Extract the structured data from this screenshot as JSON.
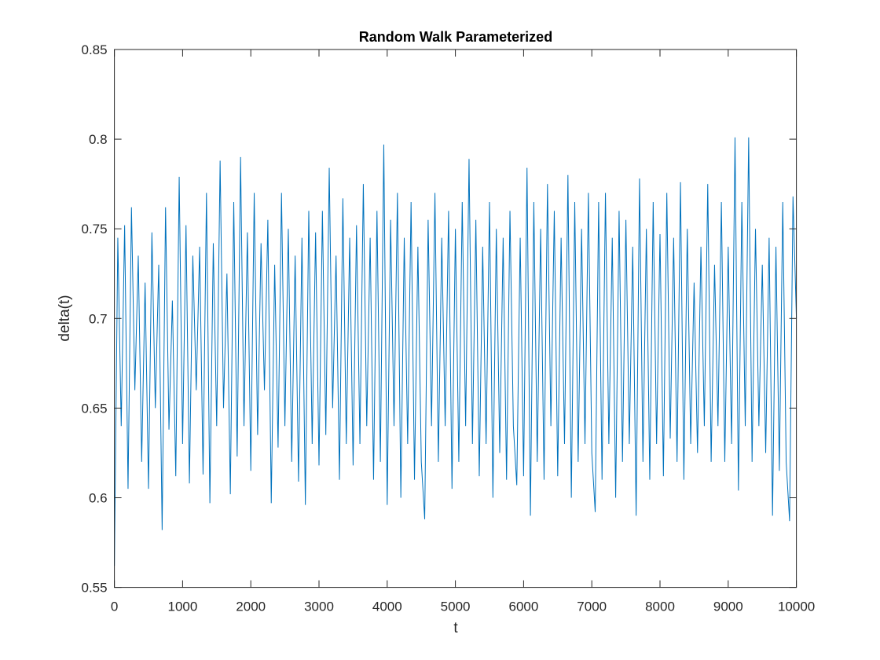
{
  "chart_data": {
    "type": "line",
    "title": "Random Walk Parameterized",
    "x_label": "t",
    "y_label": "delta(t)",
    "x": [
      0,
      50,
      100,
      150,
      200,
      250,
      300,
      350,
      400,
      450,
      500,
      550,
      600,
      650,
      700,
      750,
      800,
      850,
      900,
      950,
      1000,
      1050,
      1100,
      1150,
      1200,
      1250,
      1300,
      1350,
      1400,
      1450,
      1500,
      1550,
      1600,
      1650,
      1700,
      1750,
      1800,
      1850,
      1900,
      1950,
      2000,
      2050,
      2100,
      2150,
      2200,
      2250,
      2300,
      2350,
      2400,
      2450,
      2500,
      2550,
      2600,
      2650,
      2700,
      2750,
      2800,
      2850,
      2900,
      2950,
      3000,
      3050,
      3100,
      3150,
      3200,
      3250,
      3300,
      3350,
      3400,
      3450,
      3500,
      3550,
      3600,
      3650,
      3700,
      3750,
      3800,
      3850,
      3900,
      3950,
      4000,
      4050,
      4100,
      4150,
      4200,
      4250,
      4300,
      4350,
      4400,
      4450,
      4500,
      4550,
      4600,
      4650,
      4700,
      4750,
      4800,
      4850,
      4900,
      4950,
      5000,
      5050,
      5100,
      5150,
      5200,
      5250,
      5300,
      5350,
      5400,
      5450,
      5500,
      5550,
      5600,
      5650,
      5700,
      5750,
      5800,
      5850,
      5900,
      5950,
      6000,
      6050,
      6100,
      6150,
      6200,
      6250,
      6300,
      6350,
      6400,
      6450,
      6500,
      6550,
      6600,
      6650,
      6700,
      6750,
      6800,
      6850,
      6900,
      6950,
      7000,
      7050,
      7100,
      7150,
      7200,
      7250,
      7300,
      7350,
      7400,
      7450,
      7500,
      7550,
      7600,
      7650,
      7700,
      7750,
      7800,
      7850,
      7900,
      7950,
      8000,
      8050,
      8100,
      8150,
      8200,
      8250,
      8300,
      8350,
      8400,
      8450,
      8500,
      8550,
      8600,
      8650,
      8700,
      8750,
      8800,
      8850,
      8900,
      8950,
      9000,
      9050,
      9100,
      9150,
      9200,
      9250,
      9300,
      9350,
      9400,
      9450,
      9500,
      9550,
      9600,
      9650,
      9700,
      9750,
      9800,
      9850,
      9900,
      9950,
      10000
    ],
    "series": [
      {
        "color": "#0072bd",
        "values": [
          0.562,
          0.745,
          0.64,
          0.752,
          0.605,
          0.762,
          0.66,
          0.735,
          0.62,
          0.72,
          0.605,
          0.748,
          0.65,
          0.73,
          0.582,
          0.762,
          0.638,
          0.71,
          0.612,
          0.779,
          0.63,
          0.752,
          0.608,
          0.735,
          0.66,
          0.74,
          0.613,
          0.77,
          0.597,
          0.742,
          0.64,
          0.788,
          0.65,
          0.725,
          0.602,
          0.765,
          0.623,
          0.79,
          0.64,
          0.748,
          0.615,
          0.77,
          0.635,
          0.742,
          0.66,
          0.755,
          0.597,
          0.73,
          0.628,
          0.77,
          0.64,
          0.75,
          0.62,
          0.735,
          0.609,
          0.745,
          0.596,
          0.76,
          0.63,
          0.748,
          0.618,
          0.76,
          0.635,
          0.784,
          0.65,
          0.735,
          0.61,
          0.767,
          0.63,
          0.745,
          0.618,
          0.752,
          0.63,
          0.775,
          0.64,
          0.745,
          0.61,
          0.76,
          0.62,
          0.797,
          0.596,
          0.755,
          0.64,
          0.77,
          0.6,
          0.745,
          0.63,
          0.765,
          0.61,
          0.74,
          0.62,
          0.588,
          0.755,
          0.64,
          0.77,
          0.62,
          0.745,
          0.64,
          0.76,
          0.605,
          0.75,
          0.62,
          0.765,
          0.64,
          0.789,
          0.63,
          0.755,
          0.612,
          0.74,
          0.63,
          0.765,
          0.6,
          0.75,
          0.625,
          0.745,
          0.61,
          0.76,
          0.64,
          0.607,
          0.745,
          0.612,
          0.784,
          0.59,
          0.765,
          0.62,
          0.75,
          0.61,
          0.775,
          0.64,
          0.76,
          0.612,
          0.745,
          0.63,
          0.78,
          0.6,
          0.765,
          0.62,
          0.75,
          0.63,
          0.77,
          0.625,
          0.592,
          0.765,
          0.61,
          0.77,
          0.63,
          0.745,
          0.6,
          0.76,
          0.62,
          0.755,
          0.63,
          0.74,
          0.59,
          0.778,
          0.62,
          0.75,
          0.61,
          0.765,
          0.63,
          0.747,
          0.612,
          0.77,
          0.633,
          0.745,
          0.62,
          0.776,
          0.61,
          0.75,
          0.63,
          0.72,
          0.625,
          0.74,
          0.64,
          0.775,
          0.62,
          0.73,
          0.64,
          0.765,
          0.62,
          0.74,
          0.63,
          0.801,
          0.604,
          0.765,
          0.64,
          0.801,
          0.62,
          0.75,
          0.64,
          0.73,
          0.625,
          0.745,
          0.59,
          0.74,
          0.615,
          0.765,
          0.62,
          0.587,
          0.768,
          0.7
        ]
      }
    ],
    "xlim": [
      0,
      10000
    ],
    "xticks": [
      0,
      1000,
      2000,
      3000,
      4000,
      5000,
      6000,
      7000,
      8000,
      9000,
      10000
    ],
    "ylim": [
      0.55,
      0.85
    ],
    "yticks": [
      0.55,
      0.6,
      0.65,
      0.7,
      0.75,
      0.8,
      0.85
    ],
    "grid": false
  }
}
